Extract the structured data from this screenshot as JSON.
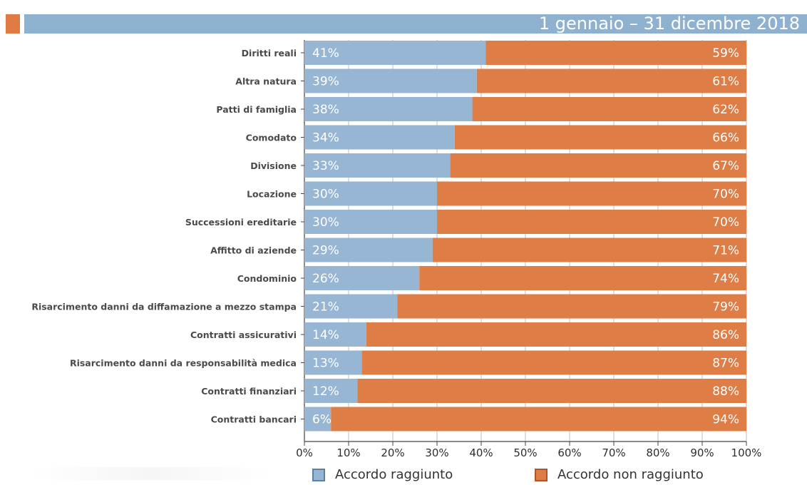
{
  "header": {
    "title": "1 gennaio – 31 dicembre 2018"
  },
  "colors": {
    "accent_orange": "#e07b43",
    "accent_blue": "#8eb1d0",
    "bar_blue": "#97b6d3",
    "bar_orange": "#de7d45",
    "text": "#4a4a4a",
    "axis": "#444444"
  },
  "legend": {
    "items": [
      {
        "label": "Accordo raggiunto",
        "color": "#97b6d3"
      },
      {
        "label": "Accordo non raggiunto",
        "color": "#de7d45"
      }
    ]
  },
  "chart_data": {
    "type": "bar",
    "orientation": "horizontal",
    "stacked": true,
    "percentage": true,
    "categories": [
      "Diritti reali",
      "Altra natura",
      "Patti di famiglia",
      "Comodato",
      "Divisione",
      "Locazione",
      "Successioni ereditarie",
      "Affitto di aziende",
      "Condominio",
      "Risarcimento danni da diffamazione a mezzo stampa",
      "Contratti assicurativi",
      "Risarcimento danni da responsabilità medica",
      "Contratti finanziari",
      "Contratti bancari"
    ],
    "series": [
      {
        "name": "Accordo raggiunto",
        "values": [
          41,
          39,
          38,
          34,
          33,
          30,
          30,
          29,
          26,
          21,
          14,
          13,
          12,
          6
        ],
        "labels": [
          "41%",
          "39%",
          "38%",
          "34%",
          "33%",
          "30%",
          "30%",
          "29%",
          "26%",
          "21%",
          "14%",
          "13%",
          "12%",
          "6%"
        ]
      },
      {
        "name": "Accordo non raggiunto",
        "values": [
          59,
          61,
          62,
          66,
          67,
          70,
          70,
          71,
          74,
          79,
          86,
          87,
          88,
          94
        ],
        "labels": [
          "59%",
          "61%",
          "62%",
          "66%",
          "67%",
          "70%",
          "70%",
          "71%",
          "74%",
          "79%",
          "86%",
          "87%",
          "88%",
          "94%"
        ]
      }
    ],
    "xlim": [
      0,
      100
    ],
    "x_ticks": [
      0,
      10,
      20,
      30,
      40,
      50,
      60,
      70,
      80,
      90,
      100
    ],
    "x_tick_labels": [
      "0%",
      "10%",
      "20%",
      "30%",
      "40%",
      "50%",
      "60%",
      "70%",
      "80%",
      "90%",
      "100%"
    ],
    "grid": true,
    "legend_position": "bottom"
  }
}
